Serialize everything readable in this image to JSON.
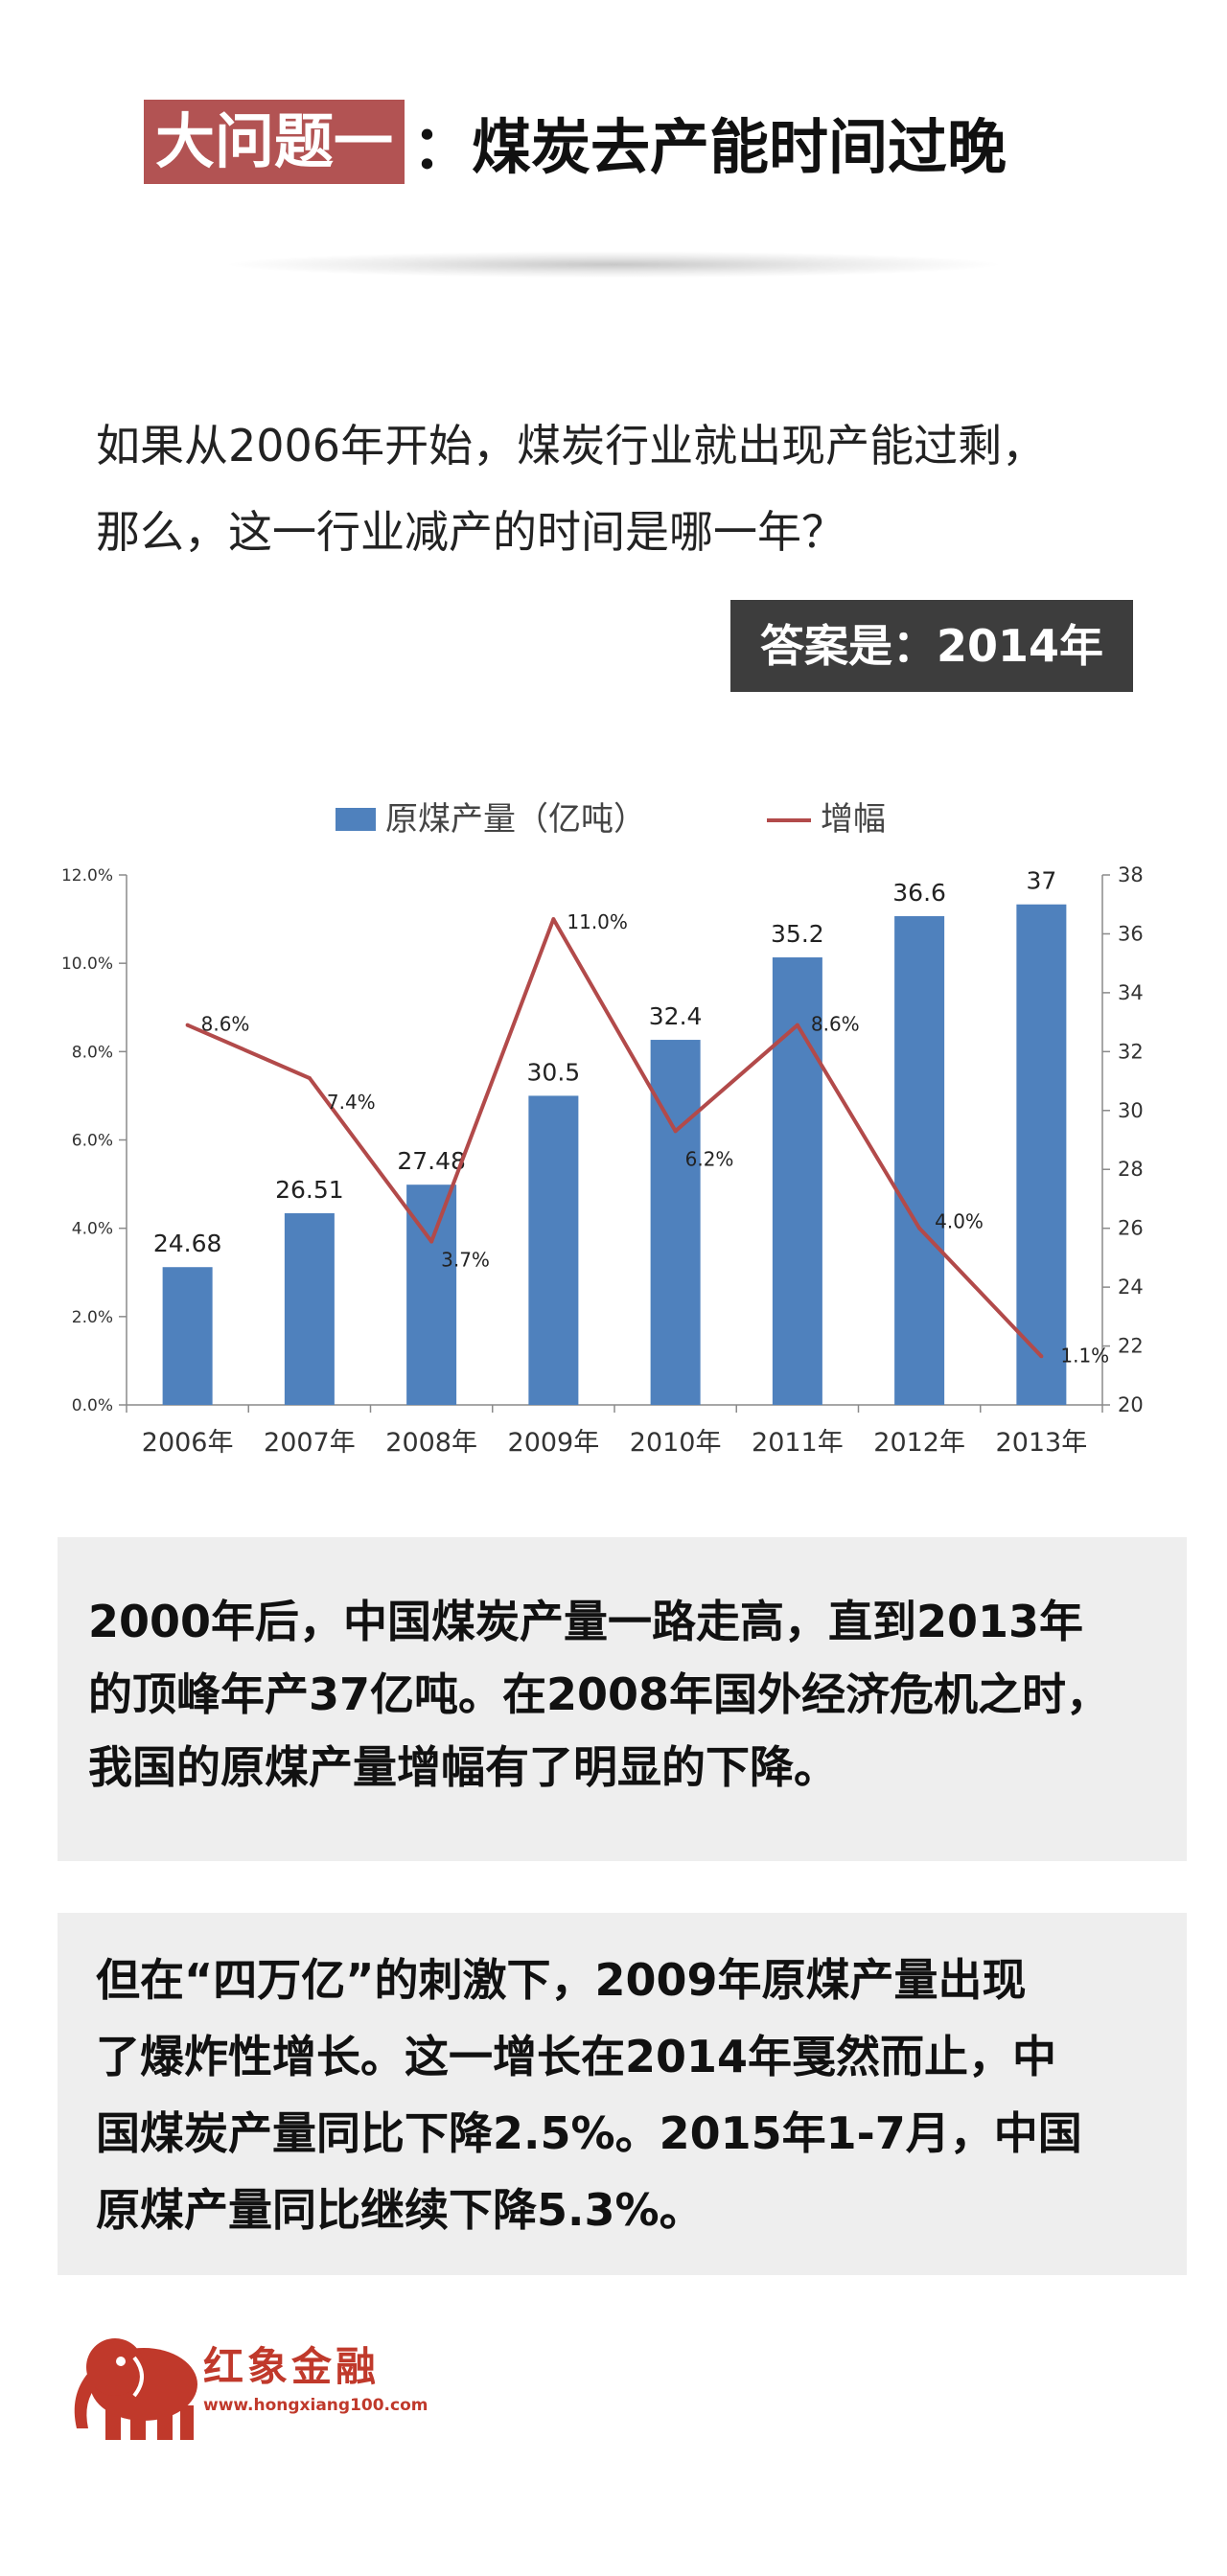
{
  "heading": {
    "tag": "大问题一",
    "rest": "：煤炭去产能时间过晚"
  },
  "question": {
    "line1": "如果从2006年开始，煤炭行业就出现产能过剩，",
    "line2": "那么，这一行业减产的时间是哪一年？"
  },
  "answer": "答案是：2014年",
  "chart_data": {
    "type": "bar",
    "categories": [
      "2006年",
      "2007年",
      "2008年",
      "2009年",
      "2010年",
      "2011年",
      "2012年",
      "2013年"
    ],
    "series": [
      {
        "name": "原煤产量（亿吨）",
        "kind": "bar",
        "axis": "right",
        "color": "#4f81bd",
        "values": [
          24.68,
          26.51,
          27.48,
          30.5,
          32.4,
          35.2,
          36.6,
          37
        ],
        "labels": [
          "24.68",
          "26.51",
          "27.48",
          "30.5",
          "32.4",
          "35.2",
          "36.6",
          "37"
        ]
      },
      {
        "name": "增幅",
        "kind": "line",
        "axis": "left",
        "color": "#b24a4a",
        "values": [
          8.6,
          7.4,
          3.7,
          11.0,
          6.2,
          8.6,
          4.0,
          1.1
        ],
        "labels": [
          "8.6%",
          "7.4%",
          "3.7%",
          "11.0%",
          "6.2%",
          "8.6%",
          "4.0%",
          "1.1%"
        ]
      }
    ],
    "y_left": {
      "range": [
        0,
        12
      ],
      "ticks": [
        "0.0%",
        "2.0%",
        "4.0%",
        "6.0%",
        "8.0%",
        "10.0%",
        "12.0%"
      ]
    },
    "y_right": {
      "range": [
        20,
        38
      ],
      "ticks": [
        "20",
        "22",
        "24",
        "26",
        "28",
        "30",
        "32",
        "34",
        "36",
        "38"
      ]
    },
    "legend_position": "top",
    "grid": false
  },
  "panel1": [
    "2000年后，中国煤炭产量一路走高，直到2013年",
    "的顶峰年产37亿吨。在2008年国外经济危机之时，",
    "我国的原煤产量增幅有了明显的下降。"
  ],
  "panel2": [
    "但在“四万亿”的刺激下，2009年原煤产量出现",
    "了爆炸性增长。这一增长在2014年戛然而止，中",
    "国煤炭产量同比下降2.5%。2015年1-7月，中国",
    "原煤产量同比继续下降5.3%。"
  ],
  "logo": {
    "name": "红象金融",
    "url": "www.hongxiang100.com",
    "color": "#c0392b"
  }
}
